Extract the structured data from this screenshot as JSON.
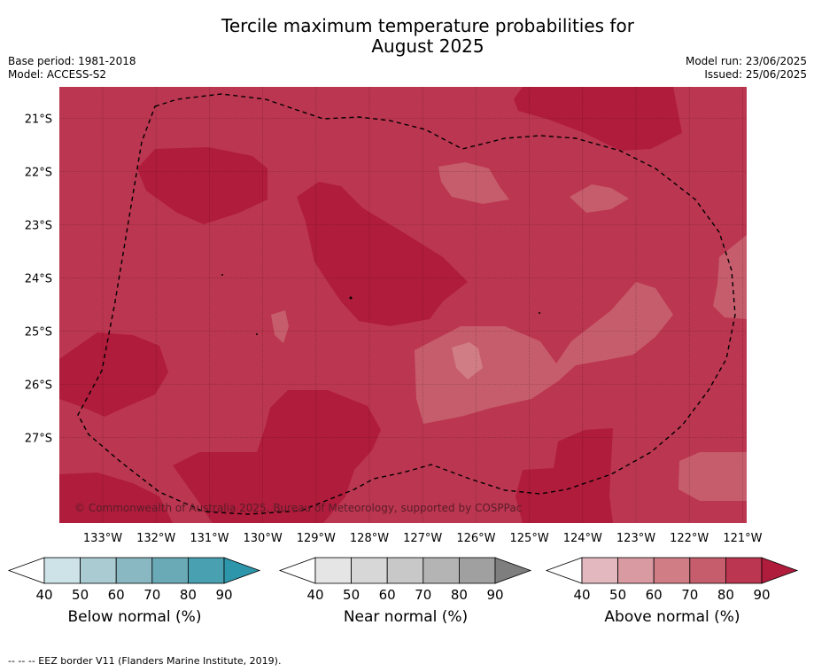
{
  "title_line1": "Tercile maximum temperature probabilities for",
  "title_line2": "August 2025",
  "base_period": "Base period: 1981-2018",
  "model": "Model: ACCESS-S2",
  "model_run": "Model run: 23/06/2025",
  "issued": "Issued: 25/06/2025",
  "copyright": "© Commonwealth of Australia 2025, Bureau of Meteorology, supported by COSPPac",
  "lat_labels": [
    "21°S",
    "22°S",
    "23°S",
    "24°S",
    "25°S",
    "26°S",
    "27°S"
  ],
  "lon_labels": [
    "133°W",
    "132°W",
    "131°W",
    "130°W",
    "129°W",
    "128°W",
    "127°W",
    "126°W",
    "125°W",
    "124°W",
    "123°W",
    "122°W",
    "121°W"
  ],
  "colorbars": [
    {
      "name": "below",
      "title": "Below normal (%)",
      "ticks": [
        "40",
        "50",
        "60",
        "70",
        "80",
        "90"
      ],
      "colors": [
        "#cde3e8",
        "#a9cbd1",
        "#8ab8c2",
        "#6aaab6",
        "#48a0b0",
        "#2e96aa"
      ]
    },
    {
      "name": "near",
      "title": "Near normal (%)",
      "ticks": [
        "40",
        "50",
        "60",
        "70",
        "80",
        "90"
      ],
      "colors": [
        "#e5e5e5",
        "#d7d7d7",
        "#c8c8c8",
        "#b4b4b4",
        "#a0a0a0",
        "#7e7e7e"
      ]
    },
    {
      "name": "above",
      "title": "Above normal (%)",
      "ticks": [
        "40",
        "50",
        "60",
        "70",
        "80",
        "90"
      ],
      "colors": [
        "#e3b8bf",
        "#d99aa2",
        "#d17d86",
        "#c65d6c",
        "#bb3650",
        "#b01c3b"
      ]
    }
  ],
  "footer": "--  --  -- EEZ border V11 (Flanders Marine Institute, 2019)."
}
